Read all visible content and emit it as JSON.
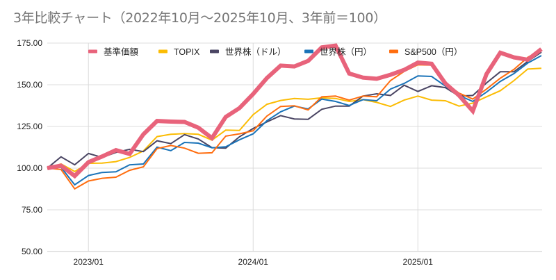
{
  "chart_data": {
    "type": "line",
    "title": "3年比較チャート（2022年10月～2025年10月、3年前＝100）",
    "xlabel": "",
    "ylabel": "",
    "ylim": [
      50,
      175
    ],
    "yticks": [
      "50.00",
      "75.00",
      "100.00",
      "125.00",
      "150.00",
      "175.00"
    ],
    "ytick_values": [
      50,
      75,
      100,
      125,
      150,
      175
    ],
    "x_start": "2022/10",
    "x_count": 37,
    "xticks": [
      {
        "label": "2023/01",
        "index": 3
      },
      {
        "label": "2024/01",
        "index": 15
      },
      {
        "label": "2025/01",
        "index": 27
      }
    ],
    "grid": true,
    "legend_position": "top",
    "series": [
      {
        "name": "基準価額",
        "color": "#E8637B",
        "width": 6,
        "values": [
          100,
          101.5,
          95.3,
          103.6,
          107,
          110.8,
          108.5,
          120.3,
          128.3,
          127.9,
          127.7,
          124.3,
          118,
          130.7,
          136,
          144.5,
          154,
          161.5,
          161,
          164.3,
          172.4,
          173.5,
          156.7,
          154.3,
          153.6,
          156,
          158.9,
          163.3,
          162.6,
          150.8,
          143.6,
          134.2,
          156.4,
          169.2,
          166.4,
          165,
          171.4
        ]
      },
      {
        "name": "TOPIX",
        "color": "#FBBC04",
        "width": 2,
        "values": [
          100,
          102.5,
          98,
          102.9,
          103,
          103.9,
          106.4,
          110.3,
          118.9,
          120.3,
          120.7,
          120.3,
          116.8,
          122.8,
          122.6,
          132.1,
          138.3,
          140.6,
          141.8,
          141.3,
          142.2,
          141.8,
          140,
          141.1,
          139.4,
          137,
          140.8,
          143.2,
          140.8,
          140.4,
          137.2,
          139,
          142.8,
          146.4,
          152.5,
          159.4,
          159.9
        ]
      },
      {
        "name": "世界株（ドル）",
        "color": "#4A4563",
        "width": 2,
        "values": [
          100,
          106.8,
          102,
          108.8,
          106.4,
          109.4,
          111.3,
          109.9,
          116.4,
          114.7,
          120.1,
          117.5,
          112.3,
          112,
          118.8,
          123.8,
          127.7,
          131.5,
          129.5,
          129.3,
          135.3,
          137.2,
          137.2,
          143.2,
          144.6,
          143.6,
          149.7,
          146,
          149.4,
          148.3,
          143.2,
          143.6,
          151.1,
          157.8,
          157.8,
          164,
          169.6
        ]
      },
      {
        "name": "世界株（円）",
        "color": "#1A73B8",
        "width": 2,
        "values": [
          100,
          100.5,
          90,
          95.6,
          97.4,
          97.8,
          102,
          102.5,
          112.6,
          110.5,
          115.4,
          115,
          112.2,
          112.8,
          117,
          120.6,
          128.4,
          133.8,
          137.2,
          135.5,
          141.4,
          140,
          137.6,
          141.1,
          140.4,
          147.4,
          150.8,
          155.3,
          155,
          149.2,
          143.6,
          140,
          145.6,
          152,
          156.7,
          163,
          167.5
        ]
      },
      {
        "name": "S&P500（円）",
        "color": "#FF6D0F",
        "width": 2,
        "values": [
          100,
          99.2,
          87.6,
          92.3,
          93.9,
          94.6,
          98.7,
          100.8,
          111.7,
          113.6,
          112,
          108.9,
          109.2,
          119.2,
          120.6,
          122.4,
          131.2,
          137,
          137.4,
          134.9,
          142.8,
          143.2,
          140.8,
          143.2,
          142.8,
          152.5,
          158,
          162,
          161.8,
          151.1,
          145,
          141.4,
          147.4,
          153.9,
          159.2,
          166.4,
          171
        ]
      }
    ]
  }
}
